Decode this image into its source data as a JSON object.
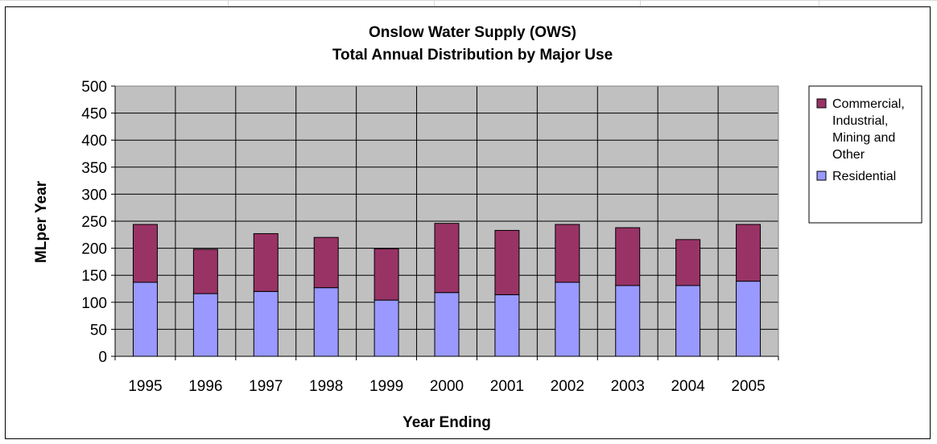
{
  "chart_data": {
    "type": "bar",
    "stacked": true,
    "title": [
      "Onslow Water Supply (OWS)",
      "Total Annual Distribution by Major Use"
    ],
    "xlabel": "Year Ending",
    "ylabel": "MLper Year",
    "ylim": [
      0,
      500
    ],
    "yticks": [
      0,
      50,
      100,
      150,
      200,
      250,
      300,
      350,
      400,
      450,
      500
    ],
    "grid": true,
    "legend_position": "right",
    "categories": [
      "1995",
      "1996",
      "1997",
      "1998",
      "1999",
      "2000",
      "2001",
      "2002",
      "2003",
      "2004",
      "2005"
    ],
    "series": [
      {
        "name": "Residential",
        "color": "#9999ff",
        "values": [
          137,
          116,
          120,
          127,
          104,
          118,
          114,
          137,
          131,
          131,
          139
        ]
      },
      {
        "name": "Commercial, Industrial, Mining and Other",
        "legend_lines": [
          "Commercial,",
          "Industrial,",
          "Mining and",
          "Other"
        ],
        "color": "#993366",
        "values": [
          107,
          82,
          107,
          93,
          95,
          128,
          119,
          107,
          107,
          85,
          105
        ]
      }
    ],
    "plot_background": "#c0c0c0"
  }
}
